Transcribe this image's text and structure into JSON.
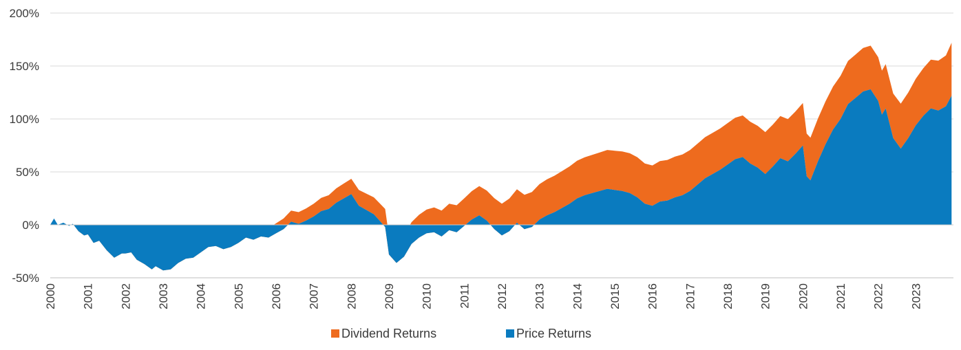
{
  "chart_data": {
    "type": "area",
    "stacked": true,
    "title": "",
    "xlabel": "",
    "ylabel": "",
    "xlim": [
      2000,
      2024
    ],
    "ylim": [
      -50,
      200
    ],
    "y_unit": "%",
    "y_ticks": [
      -50,
      0,
      50,
      100,
      150,
      200
    ],
    "y_tick_labels": [
      "-50%",
      "0%",
      "50%",
      "100%",
      "150%",
      "200%"
    ],
    "x_ticks": [
      2000,
      2001,
      2002,
      2003,
      2004,
      2005,
      2006,
      2007,
      2008,
      2009,
      2010,
      2011,
      2012,
      2013,
      2014,
      2015,
      2016,
      2017,
      2018,
      2019,
      2020,
      2021,
      2022,
      2023
    ],
    "x_tick_labels": [
      "2000",
      "2001",
      "2002",
      "2003",
      "2004",
      "2005",
      "2006",
      "2007",
      "2008",
      "2009",
      "2010",
      "2011",
      "2012",
      "2013",
      "2014",
      "2015",
      "2016",
      "2017",
      "2018",
      "2019",
      "2020",
      "2021",
      "2022",
      "2023"
    ],
    "grid": {
      "horizontal": true,
      "vertical": false
    },
    "legend": {
      "position": "bottom-center"
    },
    "x": [
      2000.0,
      2000.1,
      2000.2,
      2000.35,
      2000.5,
      2000.6,
      2000.75,
      2000.9,
      2001.0,
      2001.15,
      2001.3,
      2001.5,
      2001.7,
      2001.9,
      2002.0,
      2002.15,
      2002.3,
      2002.5,
      2002.7,
      2002.8,
      2003.0,
      2003.2,
      2003.4,
      2003.6,
      2003.8,
      2004.0,
      2004.2,
      2004.4,
      2004.6,
      2004.8,
      2005.0,
      2005.2,
      2005.4,
      2005.6,
      2005.8,
      2006.0,
      2006.2,
      2006.4,
      2006.6,
      2006.8,
      2007.0,
      2007.2,
      2007.4,
      2007.6,
      2007.8,
      2008.0,
      2008.2,
      2008.4,
      2008.6,
      2008.75,
      2008.9,
      2009.0,
      2009.2,
      2009.4,
      2009.6,
      2009.8,
      2010.0,
      2010.2,
      2010.4,
      2010.6,
      2010.8,
      2011.0,
      2011.2,
      2011.4,
      2011.6,
      2011.8,
      2012.0,
      2012.2,
      2012.4,
      2012.6,
      2012.8,
      2013.0,
      2013.2,
      2013.4,
      2013.6,
      2013.8,
      2014.0,
      2014.2,
      2014.4,
      2014.6,
      2014.8,
      2015.0,
      2015.2,
      2015.4,
      2015.6,
      2015.8,
      2016.0,
      2016.2,
      2016.4,
      2016.6,
      2016.8,
      2017.0,
      2017.2,
      2017.4,
      2017.6,
      2017.8,
      2018.0,
      2018.2,
      2018.4,
      2018.6,
      2018.8,
      2019.0,
      2019.2,
      2019.4,
      2019.6,
      2019.8,
      2020.0,
      2020.1,
      2020.2,
      2020.4,
      2020.6,
      2020.8,
      2021.0,
      2021.2,
      2021.4,
      2021.6,
      2021.8,
      2022.0,
      2022.1,
      2022.2,
      2022.4,
      2022.6,
      2022.8,
      2023.0,
      2023.2,
      2023.4,
      2023.6,
      2023.8,
      2023.95
    ],
    "series": [
      {
        "name": "Price Returns",
        "color": "#0a7bbf",
        "values": [
          0,
          6,
          0,
          2,
          -1,
          1,
          -6,
          -10,
          -9,
          -17,
          -15,
          -24,
          -31,
          -27,
          -27,
          -26,
          -33,
          -37,
          -42,
          -39,
          -43,
          -42,
          -36,
          -32,
          -31,
          -26,
          -21,
          -20,
          -23,
          -21,
          -17,
          -12,
          -14,
          -11,
          -12,
          -8,
          -4,
          3,
          1,
          4,
          8,
          13,
          15,
          21,
          25,
          29,
          18,
          14,
          10,
          4,
          -2,
          -28,
          -36,
          -30,
          -18,
          -12,
          -8,
          -7,
          -11,
          -5,
          -7,
          -1,
          5,
          9,
          4,
          -4,
          -10,
          -6,
          2,
          -4,
          -2,
          5,
          9,
          12,
          16,
          20,
          25,
          28,
          30,
          32,
          34,
          33,
          32,
          30,
          26,
          20,
          18,
          22,
          23,
          26,
          28,
          32,
          38,
          44,
          48,
          52,
          57,
          62,
          64,
          58,
          54,
          48,
          55,
          63,
          60,
          67,
          75,
          46,
          42,
          60,
          76,
          90,
          100,
          114,
          120,
          126,
          128,
          117,
          104,
          110,
          82,
          72,
          82,
          94,
          103,
          110,
          108,
          112,
          122
        ]
      },
      {
        "name": "Dividend Returns",
        "color": "#ee6b1e",
        "values": [
          0,
          0,
          0,
          0,
          0,
          0,
          0.5,
          0.8,
          1,
          1.3,
          1.5,
          1.8,
          2,
          2.3,
          2.5,
          2.7,
          3,
          3.2,
          3.4,
          3.6,
          3.8,
          4,
          4.3,
          4.6,
          4.9,
          5.2,
          5.5,
          5.8,
          6.1,
          6.5,
          7,
          7.5,
          8,
          8.5,
          9,
          9.5,
          10,
          10.5,
          11,
          11.5,
          12,
          12.5,
          13,
          13.5,
          14,
          14.5,
          15,
          15.5,
          16,
          16.5,
          17,
          17.5,
          18.5,
          19.5,
          20.5,
          21.5,
          22.5,
          23.5,
          24.5,
          25,
          25.5,
          26,
          26.8,
          27.6,
          28.4,
          29.2,
          30,
          30.8,
          31.6,
          32.4,
          33,
          33.5,
          34,
          34.4,
          34.8,
          35.2,
          35.5,
          35.8,
          36.1,
          36.4,
          36.7,
          37,
          37.3,
          37.6,
          37.9,
          38,
          38.1,
          38.2,
          38.3,
          38.4,
          38.5,
          38.6,
          38.7,
          38.8,
          38.9,
          39,
          39.1,
          39.2,
          39.3,
          39.4,
          39.5,
          39.6,
          39.7,
          39.8,
          39.9,
          40,
          40.1,
          40.2,
          40.3,
          40.4,
          40.5,
          40.6,
          40.7,
          40.8,
          40.9,
          41,
          41.2,
          41.4,
          41.6,
          41.8,
          42,
          42.5,
          43,
          44,
          45,
          46,
          47,
          48,
          50
        ]
      }
    ]
  }
}
